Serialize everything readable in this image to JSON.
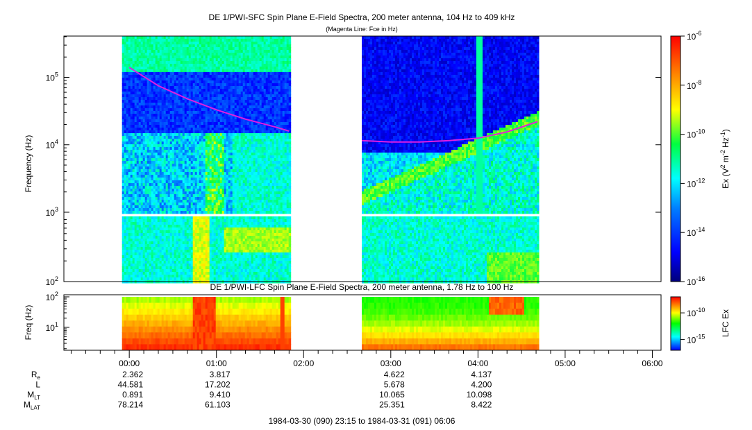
{
  "page_title": "DE 1/PWI-SFC  Spin Plane E-Field Spectra, 200 meter antenna, 104 Hz to 409 kHz",
  "chart_data": [
    {
      "type": "heatmap",
      "title": "DE 1/PWI-SFC  Spin Plane E-Field Spectra, 200 meter antenna, 104 Hz to 409 kHz",
      "subtitle": "(Magenta Line: Fce in Hz)",
      "xlabel": "",
      "ylabel": "Frequency (Hz)",
      "yscale": "log",
      "ylim": [
        100,
        409000
      ],
      "xlim": [
        "23:15",
        "06:06"
      ],
      "yticks": [
        {
          "value": 100,
          "base": "10",
          "exp": "2"
        },
        {
          "value": 1000,
          "base": "10",
          "exp": "3"
        },
        {
          "value": 10000,
          "base": "10",
          "exp": "4"
        },
        {
          "value": 100000,
          "base": "10",
          "exp": "5"
        }
      ],
      "data_intervals": [
        [
          "23:55",
          "01:50"
        ],
        [
          "02:40",
          "04:41"
        ]
      ],
      "band_gap_hz": [
        1000,
        890
      ],
      "colorbar": {
        "label_prefix": "Ex (V",
        "label_mid": " m",
        "label_mid2": " Hz",
        "label_suffix": ")",
        "sup1": "2",
        "sup2": "-2",
        "sup3": "-1",
        "scale": "log",
        "range": [
          1e-16,
          1e-06
        ],
        "colormap": [
          "#00007a",
          "#0000ff",
          "#0080ff",
          "#00ffff",
          "#00ff40",
          "#ffff00",
          "#ff8000",
          "#ff0000"
        ],
        "ticks": [
          {
            "value": 1e-06,
            "base": "10",
            "exp": "-6"
          },
          {
            "value": 1e-08,
            "base": "10",
            "exp": "-8"
          },
          {
            "value": 1e-10,
            "base": "10",
            "exp": "-10"
          },
          {
            "value": 1e-12,
            "base": "10",
            "exp": "-12"
          },
          {
            "value": 1e-14,
            "base": "10",
            "exp": "-14"
          },
          {
            "value": 1e-16,
            "base": "10",
            "exp": "-16"
          }
        ]
      },
      "series": [
        {
          "name": "Fce",
          "color": "#e01ee0",
          "unit": "Hz",
          "segments": [
            {
              "x": [
                "00:00",
                "00:20",
                "00:40",
                "01:00",
                "01:20",
                "01:40",
                "01:50"
              ],
              "y": [
                140000,
                75000,
                48000,
                33000,
                24000,
                18500,
                16000
              ]
            },
            {
              "x": [
                "02:40",
                "03:00",
                "03:20",
                "03:40",
                "04:00",
                "04:20",
                "04:41"
              ],
              "y": [
                11500,
                11000,
                11000,
                11500,
                12500,
                15500,
                22000
              ]
            }
          ]
        }
      ]
    },
    {
      "type": "heatmap",
      "title": "DE 1/PWI-LFC  Spin Plane E-Field Spectra, 200 meter antenna, 1.78 Hz to 100 Hz",
      "xlabel": "",
      "ylabel": "Freq (Hz)",
      "yscale": "log",
      "ylim": [
        1.78,
        100
      ],
      "yticks": [
        {
          "value": 100,
          "base": "10",
          "exp": "2"
        },
        {
          "value": 10,
          "base": "10",
          "exp": "1"
        }
      ],
      "data_intervals": [
        [
          "23:55",
          "01:50"
        ],
        [
          "02:40",
          "04:41"
        ]
      ],
      "colorbar": {
        "label": "LFC Ex",
        "scale": "log",
        "range": [
          1e-17,
          1e-07
        ],
        "colormap": [
          "#0000ff",
          "#00ffff",
          "#00ff00",
          "#ffff00",
          "#ff8000",
          "#ff0000"
        ],
        "ticks": [
          {
            "value": 1e-10,
            "base": "10",
            "exp": "-10"
          },
          {
            "value": 1e-15,
            "base": "10",
            "exp": "-15"
          }
        ]
      }
    }
  ],
  "x_axis": {
    "ticks": [
      "00:00",
      "01:00",
      "02:00",
      "03:00",
      "04:00",
      "05:00",
      "06:00"
    ],
    "tick_minutes": [
      45,
      105,
      165,
      225,
      285,
      345,
      405
    ],
    "range_minutes": [
      0,
      411
    ]
  },
  "ephemeris": {
    "rows": [
      {
        "label": "R",
        "sub": "e",
        "values": [
          "2.362",
          "3.817",
          "",
          "4.622",
          "4.137"
        ]
      },
      {
        "label": "L",
        "sub": "",
        "values": [
          "44.581",
          "17.202",
          "",
          "5.678",
          "4.200"
        ]
      },
      {
        "label": "M",
        "sub": "LT",
        "values": [
          "0.891",
          "9.410",
          "",
          "10.065",
          "10.098"
        ]
      },
      {
        "label": "M",
        "sub": "LAT",
        "values": [
          "78.214",
          "61.103",
          "",
          "25.351",
          "8.422"
        ]
      }
    ]
  },
  "footer": "1984-03-30 (090) 23:15 to 1984-03-31 (091) 06:06"
}
